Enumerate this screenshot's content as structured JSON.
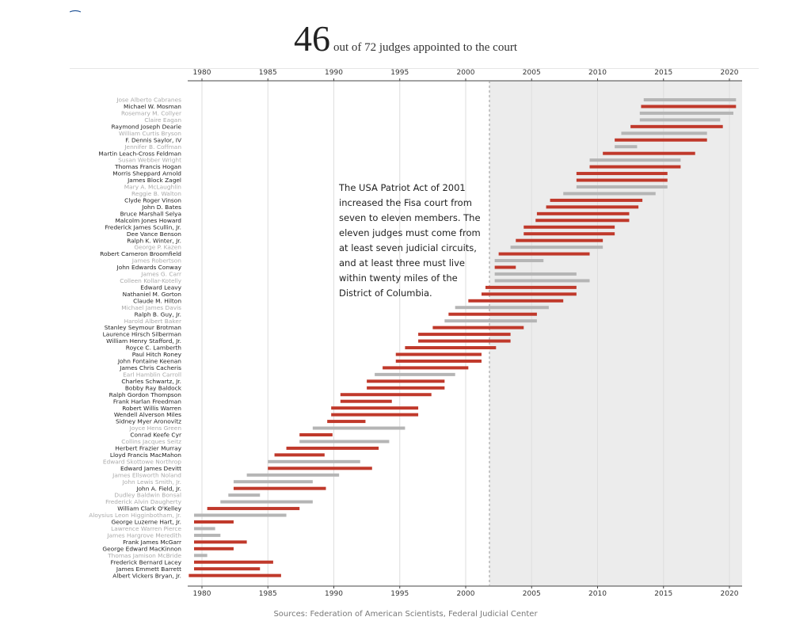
{
  "headline": {
    "number": "46",
    "text": "out of 72 judges appointed to the court"
  },
  "annotation": "The USA Patriot Act of 2001 increased the Fisa court from seven to eleven members. The eleven judges must come from at least seven judicial circuits, and at least three must live within twenty miles of the District of Columbia.",
  "source": "Sources: Federation of American Scientists, Federal Judicial Center",
  "colors": {
    "highlight": "#c0392b",
    "other": "#b5b5b5",
    "shade": "#ececec",
    "label_dark": "#222222",
    "label_light": "#aaaaaa"
  },
  "chart_data": {
    "type": "bar",
    "orientation": "horizontal-range",
    "xlim": [
      1979,
      2021
    ],
    "x_ticks": [
      1980,
      1985,
      1990,
      1995,
      2000,
      2005,
      2010,
      2015,
      2020
    ],
    "highlight_start": 2001.8,
    "series": [
      {
        "name": "Jose Alberto Cabranes",
        "start": 2013.5,
        "end": 2020.5,
        "highlight": false
      },
      {
        "name": "Michael W. Mosman",
        "start": 2013.3,
        "end": 2020.5,
        "highlight": true
      },
      {
        "name": "Rosemary M. Collyer",
        "start": 2013.2,
        "end": 2020.3,
        "highlight": false
      },
      {
        "name": "Claire Eagan",
        "start": 2013.2,
        "end": 2019.3,
        "highlight": false
      },
      {
        "name": "Raymond Joseph Dearie",
        "start": 2012.5,
        "end": 2019.5,
        "highlight": true
      },
      {
        "name": "William Curtis Bryson",
        "start": 2011.8,
        "end": 2018.3,
        "highlight": false
      },
      {
        "name": "F. Dennis Saylor, IV",
        "start": 2011.3,
        "end": 2018.3,
        "highlight": true
      },
      {
        "name": "Jennifer B. Coffman",
        "start": 2011.3,
        "end": 2013.0,
        "highlight": false
      },
      {
        "name": "Martin Leach-Cross Feldman",
        "start": 2010.4,
        "end": 2017.4,
        "highlight": true
      },
      {
        "name": "Susan Webber Wright",
        "start": 2009.4,
        "end": 2016.3,
        "highlight": false
      },
      {
        "name": "Thomas Francis Hogan",
        "start": 2009.4,
        "end": 2016.3,
        "highlight": true
      },
      {
        "name": "Morris Sheppard Arnold",
        "start": 2008.4,
        "end": 2015.3,
        "highlight": true
      },
      {
        "name": "James Block Zagel",
        "start": 2008.4,
        "end": 2015.3,
        "highlight": true
      },
      {
        "name": "Mary A. McLaughlin",
        "start": 2008.4,
        "end": 2015.3,
        "highlight": false
      },
      {
        "name": "Reggie B. Walton",
        "start": 2007.4,
        "end": 2014.4,
        "highlight": false
      },
      {
        "name": "Clyde Roger Vinson",
        "start": 2006.4,
        "end": 2013.4,
        "highlight": true
      },
      {
        "name": "John D. Bates",
        "start": 2006.1,
        "end": 2013.1,
        "highlight": true
      },
      {
        "name": "Bruce Marshall Selya",
        "start": 2005.4,
        "end": 2012.4,
        "highlight": true
      },
      {
        "name": "Malcolm Jones Howard",
        "start": 2005.3,
        "end": 2012.4,
        "highlight": true
      },
      {
        "name": "Frederick James Scullin, Jr.",
        "start": 2004.4,
        "end": 2011.3,
        "highlight": true
      },
      {
        "name": "Dee Vance Benson",
        "start": 2004.4,
        "end": 2011.3,
        "highlight": true
      },
      {
        "name": "Ralph K. Winter, Jr.",
        "start": 2003.8,
        "end": 2010.4,
        "highlight": true
      },
      {
        "name": "George P. Kazen",
        "start": 2003.4,
        "end": 2010.4,
        "highlight": false
      },
      {
        "name": "Robert Cameron Broomfield",
        "start": 2002.5,
        "end": 2009.4,
        "highlight": true
      },
      {
        "name": "James Robertson",
        "start": 2002.2,
        "end": 2005.9,
        "highlight": false
      },
      {
        "name": "John Edwards Conway",
        "start": 2002.2,
        "end": 2003.8,
        "highlight": true
      },
      {
        "name": "James G. Carr",
        "start": 2002.2,
        "end": 2008.4,
        "highlight": false
      },
      {
        "name": "Colleen Kollar-Kotelly",
        "start": 2002.2,
        "end": 2009.4,
        "highlight": false
      },
      {
        "name": "Edward Leavy",
        "start": 2001.5,
        "end": 2008.4,
        "highlight": true
      },
      {
        "name": "Nathaniel M. Gorton",
        "start": 2001.2,
        "end": 2008.4,
        "highlight": true
      },
      {
        "name": "Claude M. Hilton",
        "start": 2000.2,
        "end": 2007.4,
        "highlight": true
      },
      {
        "name": "Michael James Davis",
        "start": 1999.2,
        "end": 2006.3,
        "highlight": false
      },
      {
        "name": "Ralph B. Guy, Jr.",
        "start": 1998.7,
        "end": 2005.4,
        "highlight": true
      },
      {
        "name": "Harold Albert Baker",
        "start": 1998.4,
        "end": 2005.4,
        "highlight": false
      },
      {
        "name": "Stanley Seymour Brotman",
        "start": 1997.5,
        "end": 2004.4,
        "highlight": true
      },
      {
        "name": "Laurence Hirsch Silberman",
        "start": 1996.4,
        "end": 2003.4,
        "highlight": true
      },
      {
        "name": "William Henry Stafford, Jr.",
        "start": 1996.4,
        "end": 2003.4,
        "highlight": true
      },
      {
        "name": "Royce C. Lamberth",
        "start": 1995.4,
        "end": 2002.3,
        "highlight": true
      },
      {
        "name": "Paul Hitch Roney",
        "start": 1994.7,
        "end": 2001.2,
        "highlight": true
      },
      {
        "name": "John Fontaine Keenan",
        "start": 1994.7,
        "end": 2001.2,
        "highlight": true
      },
      {
        "name": "James Chris Cacheris",
        "start": 1993.7,
        "end": 2000.2,
        "highlight": true
      },
      {
        "name": "Earl Hamblin Carroll",
        "start": 1993.1,
        "end": 1999.2,
        "highlight": false
      },
      {
        "name": "Charles Schwartz, Jr.",
        "start": 1992.5,
        "end": 1998.4,
        "highlight": true
      },
      {
        "name": "Bobby Ray Baldock",
        "start": 1992.5,
        "end": 1998.4,
        "highlight": true
      },
      {
        "name": "Ralph Gordon Thompson",
        "start": 1990.5,
        "end": 1997.4,
        "highlight": true
      },
      {
        "name": "Frank Harlan Freedman",
        "start": 1990.5,
        "end": 1994.4,
        "highlight": true
      },
      {
        "name": "Robert Willis Warren",
        "start": 1989.8,
        "end": 1996.4,
        "highlight": true
      },
      {
        "name": "Wendell Alverson Miles",
        "start": 1989.8,
        "end": 1996.4,
        "highlight": true
      },
      {
        "name": "Sidney Myer Aronovitz",
        "start": 1989.5,
        "end": 1992.4,
        "highlight": true
      },
      {
        "name": "Joyce Hens Green",
        "start": 1988.4,
        "end": 1995.4,
        "highlight": false
      },
      {
        "name": "Conrad Keefe Cyr",
        "start": 1987.4,
        "end": 1989.9,
        "highlight": true
      },
      {
        "name": "Collins Jacques Seitz",
        "start": 1987.4,
        "end": 1994.2,
        "highlight": false
      },
      {
        "name": "Herbert Frazier Murray",
        "start": 1986.4,
        "end": 1993.4,
        "highlight": true
      },
      {
        "name": "Lloyd Francis MacMahon",
        "start": 1985.5,
        "end": 1989.3,
        "highlight": true
      },
      {
        "name": "Edward Skottowe Northrop",
        "start": 1985.0,
        "end": 1992.0,
        "highlight": false
      },
      {
        "name": "Edward James Devitt",
        "start": 1985.0,
        "end": 1992.9,
        "highlight": true
      },
      {
        "name": "James Ellsworth Noland",
        "start": 1983.4,
        "end": 1990.4,
        "highlight": false
      },
      {
        "name": "John Lewis Smith, Jr.",
        "start": 1982.4,
        "end": 1988.4,
        "highlight": false
      },
      {
        "name": "John A. Field, Jr.",
        "start": 1982.4,
        "end": 1989.4,
        "highlight": true
      },
      {
        "name": "Dudley Baldwin Bonsal",
        "start": 1982.0,
        "end": 1984.4,
        "highlight": false
      },
      {
        "name": "Frederick Alvin Daugherty",
        "start": 1981.4,
        "end": 1988.4,
        "highlight": false
      },
      {
        "name": "William Clark O'Kelley",
        "start": 1980.4,
        "end": 1987.4,
        "highlight": true
      },
      {
        "name": "Aloysius Leon Higginbotham, Jr.",
        "start": 1979.4,
        "end": 1986.4,
        "highlight": false
      },
      {
        "name": "George Luzerne Hart, Jr.",
        "start": 1979.4,
        "end": 1982.4,
        "highlight": true
      },
      {
        "name": "Lawrence Warren Pierce",
        "start": 1979.4,
        "end": 1981.0,
        "highlight": false
      },
      {
        "name": "James Hargrove Meredith",
        "start": 1979.4,
        "end": 1981.4,
        "highlight": false
      },
      {
        "name": "Frank James McGarr",
        "start": 1979.4,
        "end": 1983.4,
        "highlight": true
      },
      {
        "name": "George Edward MacKinnon",
        "start": 1979.4,
        "end": 1982.4,
        "highlight": true
      },
      {
        "name": "Thomas Jamison McBride",
        "start": 1979.4,
        "end": 1980.4,
        "highlight": false
      },
      {
        "name": "Frederick Bernard Lacey",
        "start": 1979.4,
        "end": 1985.4,
        "highlight": true
      },
      {
        "name": "James Emmett Barrett",
        "start": 1979.4,
        "end": 1984.4,
        "highlight": true
      },
      {
        "name": "Albert Vickers Bryan, Jr.",
        "start": 1979.0,
        "end": 1986.0,
        "highlight": true
      }
    ]
  }
}
